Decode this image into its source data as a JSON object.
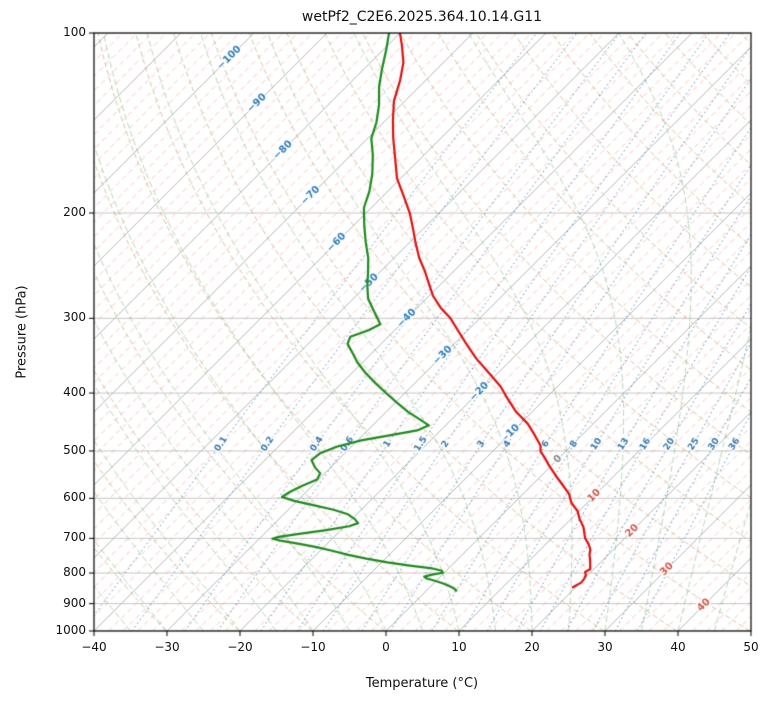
{
  "chart_data": {
    "type": "skewt_log_p",
    "title": "wetPf2_C2E6.2025.364.10.14.G11",
    "xlabel": "Temperature (°C)",
    "ylabel": "Pressure (hPa)",
    "xlim": [
      -40,
      50
    ],
    "pressure_lim": [
      100,
      1000
    ],
    "skew_deg": 45,
    "grid_color": "#c7c7c7",
    "x_ticks": [
      {
        "v": -40,
        "label": "−40"
      },
      {
        "v": -30,
        "label": "−30"
      },
      {
        "v": -20,
        "label": "−20"
      },
      {
        "v": -10,
        "label": "−10"
      },
      {
        "v": 0,
        "label": "0"
      },
      {
        "v": 10,
        "label": "10"
      },
      {
        "v": 20,
        "label": "20"
      },
      {
        "v": 30,
        "label": "30"
      },
      {
        "v": 40,
        "label": "40"
      },
      {
        "v": 50,
        "label": "50"
      }
    ],
    "p_ticks": [
      {
        "v": 100,
        "label": "100"
      },
      {
        "v": 200,
        "label": "200"
      },
      {
        "v": 300,
        "label": "300"
      },
      {
        "v": 400,
        "label": "400"
      },
      {
        "v": 500,
        "label": "500"
      },
      {
        "v": 600,
        "label": "600"
      },
      {
        "v": 700,
        "label": "700"
      },
      {
        "v": 800,
        "label": "800"
      },
      {
        "v": 900,
        "label": "900"
      },
      {
        "v": 1000,
        "label": "1000"
      }
    ],
    "isotherms": {
      "start": -130,
      "end": 50,
      "major_step": 10,
      "minor_step": 2,
      "major_color": "#b9b9b9",
      "minor_color": "rgba(246,122,104,0.42)"
    },
    "isotherm_labels": {
      "neg_color": "#2f7fbe",
      "zero_color": "#8a8a8a",
      "pos_color": "#d25a4a",
      "items": [
        {
          "v": -100,
          "p": 110,
          "label": "−100"
        },
        {
          "v": -90,
          "p": 131,
          "label": "−90"
        },
        {
          "v": -80,
          "p": 157,
          "label": "−80"
        },
        {
          "v": -70,
          "p": 187,
          "label": "−70"
        },
        {
          "v": -60,
          "p": 224,
          "label": "−60"
        },
        {
          "v": -50,
          "p": 262,
          "label": "−50"
        },
        {
          "v": -40,
          "p": 300,
          "label": "−40"
        },
        {
          "v": -30,
          "p": 346,
          "label": "−30"
        },
        {
          "v": -20,
          "p": 398,
          "label": "−20"
        },
        {
          "v": -10,
          "p": 468,
          "label": "−10"
        },
        {
          "v": 0,
          "p": 516,
          "label": "0"
        },
        {
          "v": 10,
          "p": 594,
          "label": "10"
        },
        {
          "v": 20,
          "p": 680,
          "label": "20"
        },
        {
          "v": 30,
          "p": 788,
          "label": "30"
        },
        {
          "v": 40,
          "p": 905,
          "label": "40"
        }
      ]
    },
    "dry_adiabats": {
      "theta_start_k": 243,
      "theta_end_k": 473,
      "step_k": 10,
      "color": "rgba(186,152,96,0.55)"
    },
    "moist_adiabats": {
      "t_start_c": -40,
      "t_end_c": 45,
      "step_c": 5,
      "color": "rgba(76,160,90,0.40)"
    },
    "mixing_ratio": {
      "values_g_kg": [
        0.1,
        0.2,
        0.4,
        0.6,
        1,
        1.5,
        2,
        3,
        4,
        6,
        8,
        10,
        13,
        16,
        20,
        25,
        30,
        36
      ],
      "label_pressure": 487,
      "line_color": "rgba(74,128,181,0.85)",
      "label_color": "#3a78ad"
    },
    "series": [
      {
        "name": "temperature",
        "color": "#dd1111",
        "width": 2.2,
        "points": [
          [
            100,
            -80
          ],
          [
            105,
            -78
          ],
          [
            112,
            -75.5
          ],
          [
            120,
            -73.5
          ],
          [
            130,
            -71.5
          ],
          [
            140,
            -69
          ],
          [
            150,
            -66.5
          ],
          [
            162,
            -63.5
          ],
          [
            175,
            -60.5
          ],
          [
            188,
            -57
          ],
          [
            200,
            -54
          ],
          [
            212,
            -51.5
          ],
          [
            225,
            -49
          ],
          [
            238,
            -46.5
          ],
          [
            250,
            -44
          ],
          [
            262,
            -41.8
          ],
          [
            275,
            -39.5
          ],
          [
            288,
            -36.8
          ],
          [
            300,
            -34
          ],
          [
            315,
            -31.2
          ],
          [
            330,
            -28.5
          ],
          [
            350,
            -25
          ],
          [
            370,
            -21.3
          ],
          [
            390,
            -17.8
          ],
          [
            410,
            -15
          ],
          [
            430,
            -12.2
          ],
          [
            450,
            -9
          ],
          [
            470,
            -6.5
          ],
          [
            490,
            -4.2
          ],
          [
            500,
            -3.5
          ],
          [
            515,
            -1.8
          ],
          [
            530,
            -0.2
          ],
          [
            550,
            2
          ],
          [
            570,
            4.2
          ],
          [
            590,
            6.3
          ],
          [
            610,
            7.8
          ],
          [
            630,
            9.8
          ],
          [
            650,
            11.2
          ],
          [
            670,
            12.8
          ],
          [
            690,
            14
          ],
          [
            700,
            14.6
          ],
          [
            715,
            15.8
          ],
          [
            730,
            16.8
          ],
          [
            745,
            17.4
          ],
          [
            760,
            18.2
          ],
          [
            775,
            18.9
          ],
          [
            788,
            19.5
          ],
          [
            797,
            19.2
          ],
          [
            806,
            19.7
          ],
          [
            818,
            20.0
          ],
          [
            830,
            20.1
          ],
          [
            845,
            19.6
          ]
        ]
      },
      {
        "name": "dewpoint",
        "color": "#1e8a1e",
        "width": 2.2,
        "points": [
          [
            100,
            -81.5
          ],
          [
            107,
            -79.5
          ],
          [
            115,
            -77.5
          ],
          [
            123,
            -75.5
          ],
          [
            132,
            -73
          ],
          [
            141,
            -71
          ],
          [
            150,
            -69.5
          ],
          [
            160,
            -67
          ],
          [
            172,
            -64.5
          ],
          [
            184,
            -62.5
          ],
          [
            196,
            -61
          ],
          [
            210,
            -58.5
          ],
          [
            224,
            -56
          ],
          [
            238,
            -53.5
          ],
          [
            252,
            -51.5
          ],
          [
            265,
            -49.8
          ],
          [
            278,
            -48
          ],
          [
            290,
            -45.8
          ],
          [
            300,
            -44
          ],
          [
            307,
            -42.8
          ],
          [
            314,
            -43.6
          ],
          [
            322,
            -45.2
          ],
          [
            331,
            -44.6
          ],
          [
            342,
            -42.8
          ],
          [
            355,
            -40.8
          ],
          [
            370,
            -38.2
          ],
          [
            385,
            -35.4
          ],
          [
            400,
            -32.6
          ],
          [
            415,
            -29.8
          ],
          [
            430,
            -27
          ],
          [
            443,
            -24.3
          ],
          [
            453,
            -22.3
          ],
          [
            462,
            -23.2
          ],
          [
            470,
            -26
          ],
          [
            480,
            -29.5
          ],
          [
            492,
            -32
          ],
          [
            505,
            -33.4
          ],
          [
            518,
            -33.6
          ],
          [
            532,
            -32.2
          ],
          [
            545,
            -30.6
          ],
          [
            558,
            -30.2
          ],
          [
            572,
            -31.4
          ],
          [
            585,
            -32.2
          ],
          [
            597,
            -32.6
          ],
          [
            606,
            -30.4
          ],
          [
            616,
            -27.2
          ],
          [
            627,
            -23.8
          ],
          [
            638,
            -21.2
          ],
          [
            650,
            -19.6
          ],
          [
            660,
            -18.6
          ],
          [
            668,
            -19.4
          ],
          [
            678,
            -22
          ],
          [
            688,
            -25.2
          ],
          [
            696,
            -27.6
          ],
          [
            701,
            -28.2
          ],
          [
            707,
            -26.6
          ],
          [
            715,
            -23.8
          ],
          [
            724,
            -21
          ],
          [
            735,
            -18.2
          ],
          [
            746,
            -15.6
          ],
          [
            757,
            -12.6
          ],
          [
            768,
            -9.2
          ],
          [
            778,
            -5.4
          ],
          [
            786,
            -2.2
          ],
          [
            793,
            -0.6
          ],
          [
            799,
            -0.2
          ],
          [
            805,
            -1.4
          ],
          [
            811,
            -2.2
          ],
          [
            817,
            -1.6
          ],
          [
            824,
            -0.2
          ],
          [
            832,
            1.2
          ],
          [
            840,
            2.4
          ],
          [
            848,
            3.4
          ],
          [
            856,
            4.1
          ]
        ]
      }
    ]
  }
}
